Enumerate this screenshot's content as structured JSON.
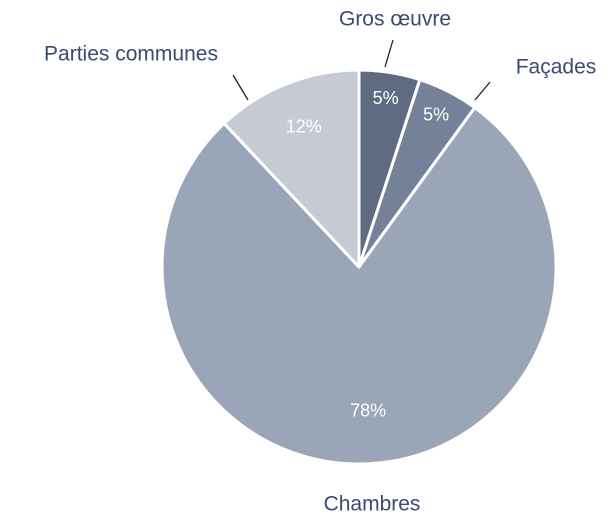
{
  "chart_data": {
    "type": "pie",
    "categories": [
      "Gros œuvre",
      "Façades",
      "Chambres",
      "Parties communes"
    ],
    "values": [
      5,
      5,
      78,
      12
    ],
    "value_labels": [
      "5%",
      "5%",
      "78%",
      "12%"
    ],
    "colors": [
      "#5f6b80",
      "#748199",
      "#9aa5b8",
      "#c5cad5"
    ]
  }
}
